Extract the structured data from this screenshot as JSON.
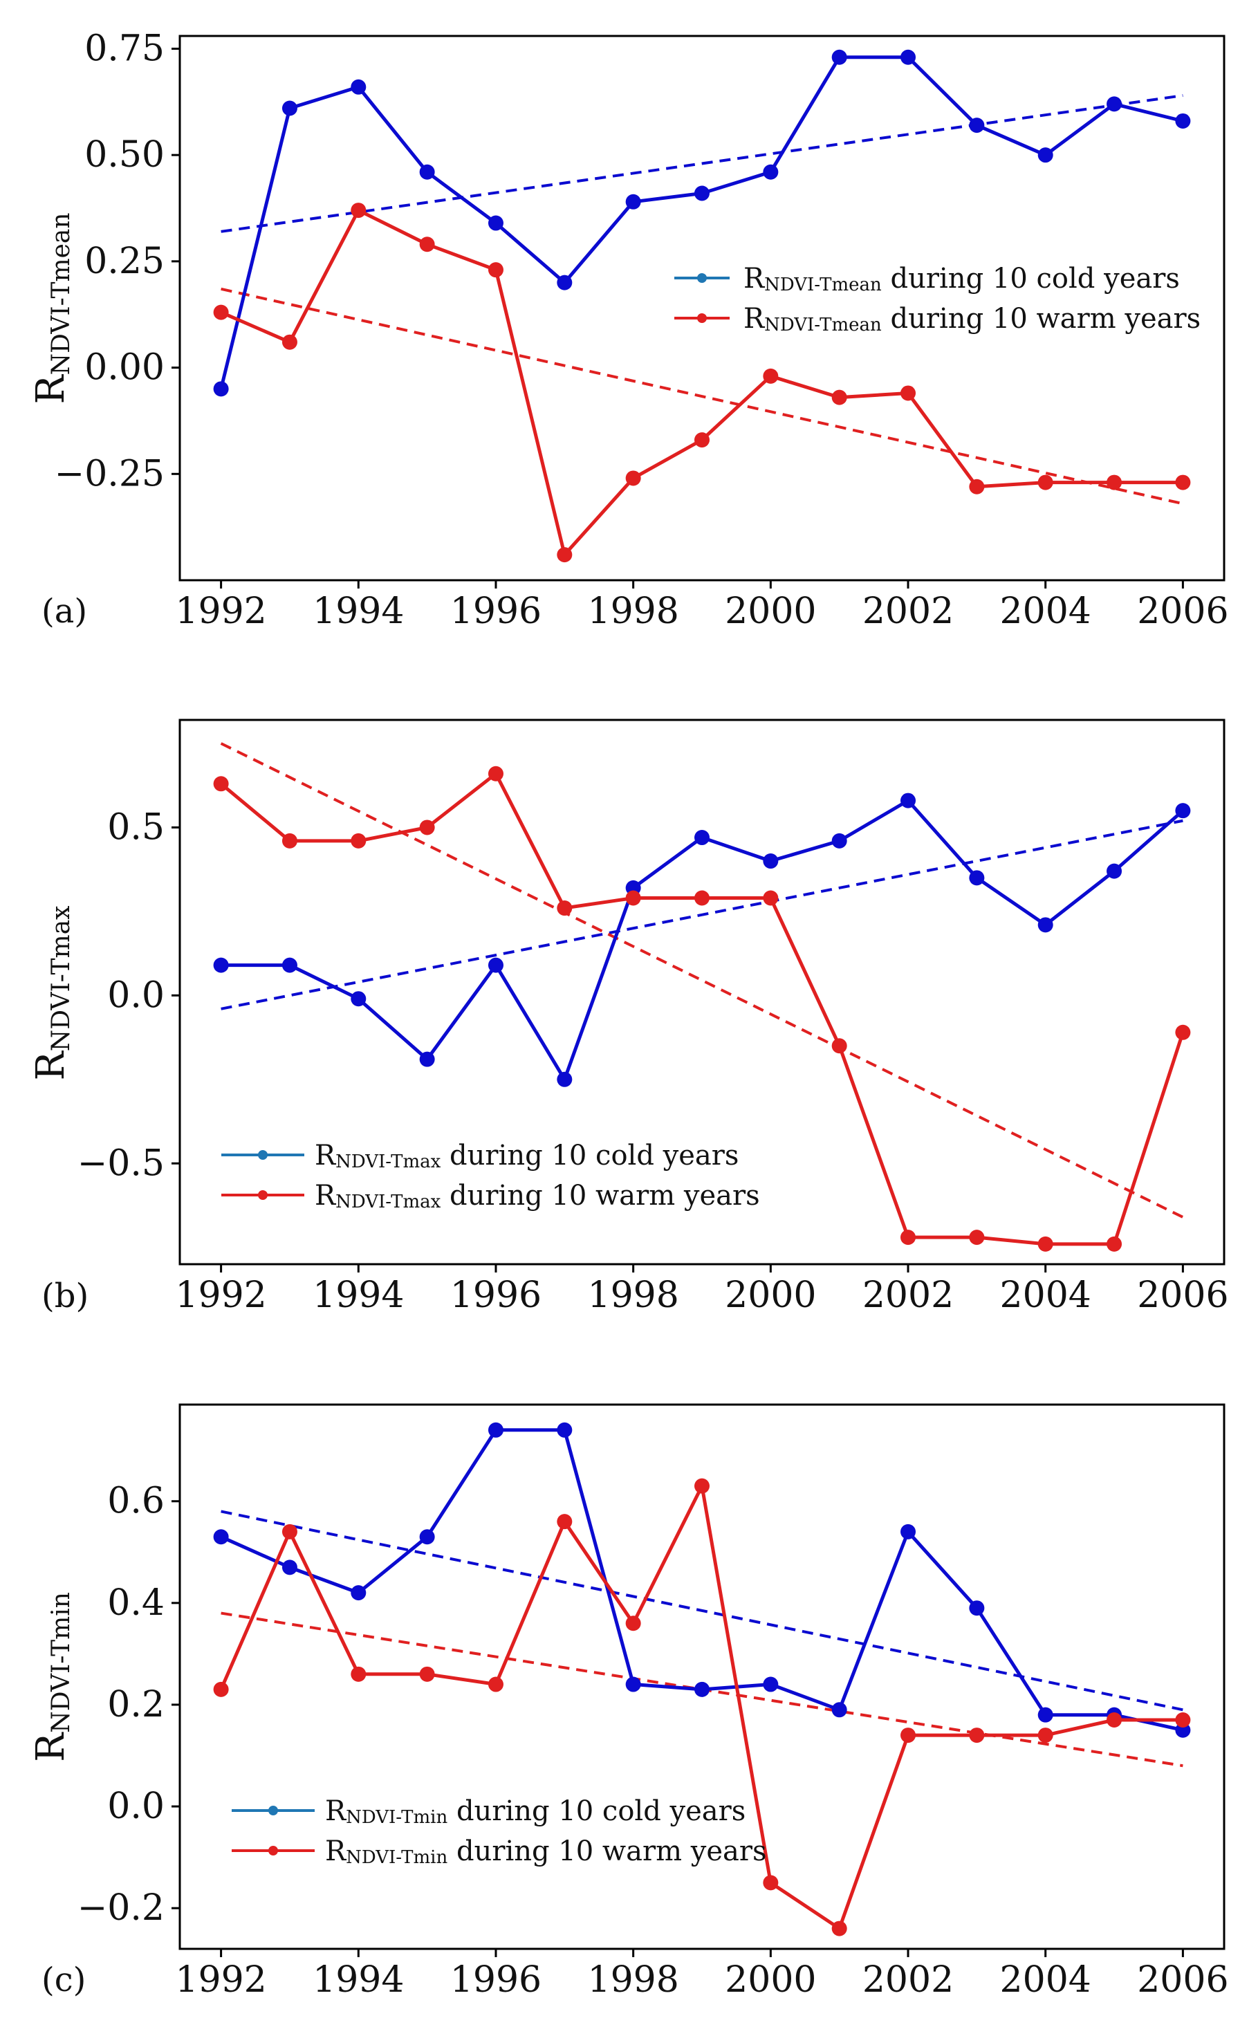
{
  "figure": {
    "background": "#ffffff"
  },
  "chart_data": [
    {
      "type": "line",
      "panel_label": "(a)",
      "ylabel": {
        "main": "R",
        "sub": "NDVI-Tmean"
      },
      "x": [
        1992,
        1993,
        1994,
        1995,
        1996,
        1997,
        1998,
        1999,
        2000,
        2001,
        2002,
        2003,
        2004,
        2005,
        2006
      ],
      "xlim": [
        1991.4,
        2006.6
      ],
      "ylim": [
        -0.5,
        0.78
      ],
      "xticks": [
        1992,
        1994,
        1996,
        1998,
        2000,
        2002,
        2004,
        2006
      ],
      "yticks": [
        0.75,
        0.5,
        0.25,
        0.0,
        -0.25
      ],
      "ytick_labels": [
        "0.75",
        "0.50",
        "0.25",
        "0.00",
        "−0.25"
      ],
      "legend_position": "center-right",
      "grid": false,
      "series": [
        {
          "name": "cold",
          "legend": {
            "main": "R",
            "sub": "NDVI-Tmean",
            "rest": " during 10 cold years"
          },
          "color": "#0b0bd0",
          "legend_color": "#1f77b4",
          "values": [
            -0.05,
            0.61,
            0.66,
            0.46,
            0.34,
            0.2,
            0.39,
            0.41,
            0.46,
            0.73,
            0.73,
            0.57,
            0.5,
            0.62,
            0.58
          ],
          "trend": [
            0.32,
            0.64
          ]
        },
        {
          "name": "warm",
          "legend": {
            "main": "R",
            "sub": "NDVI-Tmean",
            "rest": " during 10 warm years"
          },
          "color": "#e02020",
          "legend_color": "#e02020",
          "values": [
            0.13,
            0.06,
            0.37,
            0.29,
            0.23,
            -0.44,
            -0.26,
            -0.17,
            -0.02,
            -0.07,
            -0.06,
            -0.28,
            -0.27,
            -0.27,
            -0.27
          ],
          "trend": [
            0.185,
            -0.32
          ]
        }
      ]
    },
    {
      "type": "line",
      "panel_label": "(b)",
      "ylabel": {
        "main": "R",
        "sub": "NDVI-Tmax"
      },
      "x": [
        1992,
        1993,
        1994,
        1995,
        1996,
        1997,
        1998,
        1999,
        2000,
        2001,
        2002,
        2003,
        2004,
        2005,
        2006
      ],
      "xlim": [
        1991.4,
        2006.6
      ],
      "ylim": [
        -0.8,
        0.82
      ],
      "xticks": [
        1992,
        1994,
        1996,
        1998,
        2000,
        2002,
        2004,
        2006
      ],
      "yticks": [
        0.5,
        0.0,
        -0.5
      ],
      "ytick_labels": [
        "0.5",
        "0.0",
        "−0.5"
      ],
      "legend_position": "lower-left",
      "grid": false,
      "series": [
        {
          "name": "cold",
          "legend": {
            "main": "R",
            "sub": "NDVI-Tmax",
            "rest": " during 10 cold years"
          },
          "color": "#0b0bd0",
          "legend_color": "#1f77b4",
          "values": [
            0.09,
            0.09,
            -0.01,
            -0.19,
            0.09,
            -0.25,
            0.32,
            0.47,
            0.4,
            0.46,
            0.58,
            0.35,
            0.21,
            0.37,
            0.55
          ],
          "trend": [
            -0.04,
            0.52
          ]
        },
        {
          "name": "warm",
          "legend": {
            "main": "R",
            "sub": "NDVI-Tmax",
            "rest": " during 10 warm years"
          },
          "color": "#e02020",
          "legend_color": "#e02020",
          "values": [
            0.63,
            0.46,
            0.46,
            0.5,
            0.66,
            0.26,
            0.29,
            0.29,
            0.29,
            -0.15,
            -0.72,
            -0.72,
            -0.74,
            -0.74,
            -0.11
          ],
          "trend": [
            0.75,
            -0.66
          ]
        }
      ]
    },
    {
      "type": "line",
      "panel_label": "(c)",
      "ylabel": {
        "main": "R",
        "sub": "NDVI-Tmin"
      },
      "x": [
        1992,
        1993,
        1994,
        1995,
        1996,
        1997,
        1998,
        1999,
        2000,
        2001,
        2002,
        2003,
        2004,
        2005,
        2006
      ],
      "xlim": [
        1991.4,
        2006.6
      ],
      "ylim": [
        -0.28,
        0.79
      ],
      "xticks": [
        1992,
        1994,
        1996,
        1998,
        2000,
        2002,
        2004,
        2006
      ],
      "yticks": [
        0.6,
        0.4,
        0.2,
        0.0,
        -0.2
      ],
      "ytick_labels": [
        "0.6",
        "0.4",
        "0.2",
        "0.0",
        "−0.2"
      ],
      "legend_position": "lower-left",
      "grid": false,
      "series": [
        {
          "name": "cold",
          "legend": {
            "main": "R",
            "sub": "NDVI-Tmin",
            "rest": " during 10 cold years"
          },
          "color": "#0b0bd0",
          "legend_color": "#1f77b4",
          "values": [
            0.53,
            0.47,
            0.42,
            0.53,
            0.74,
            0.74,
            0.24,
            0.23,
            0.24,
            0.19,
            0.54,
            0.39,
            0.18,
            0.18,
            0.15
          ],
          "trend": [
            0.58,
            0.19
          ]
        },
        {
          "name": "warm",
          "legend": {
            "main": "R",
            "sub": "NDVI-Tmin",
            "rest": " during 10 warm years"
          },
          "color": "#e02020",
          "legend_color": "#e02020",
          "values": [
            0.23,
            0.54,
            0.26,
            0.26,
            0.24,
            0.56,
            0.36,
            0.63,
            -0.15,
            -0.24,
            0.14,
            0.14,
            0.14,
            0.17,
            0.17
          ],
          "trend": [
            0.38,
            0.08
          ]
        }
      ]
    }
  ]
}
